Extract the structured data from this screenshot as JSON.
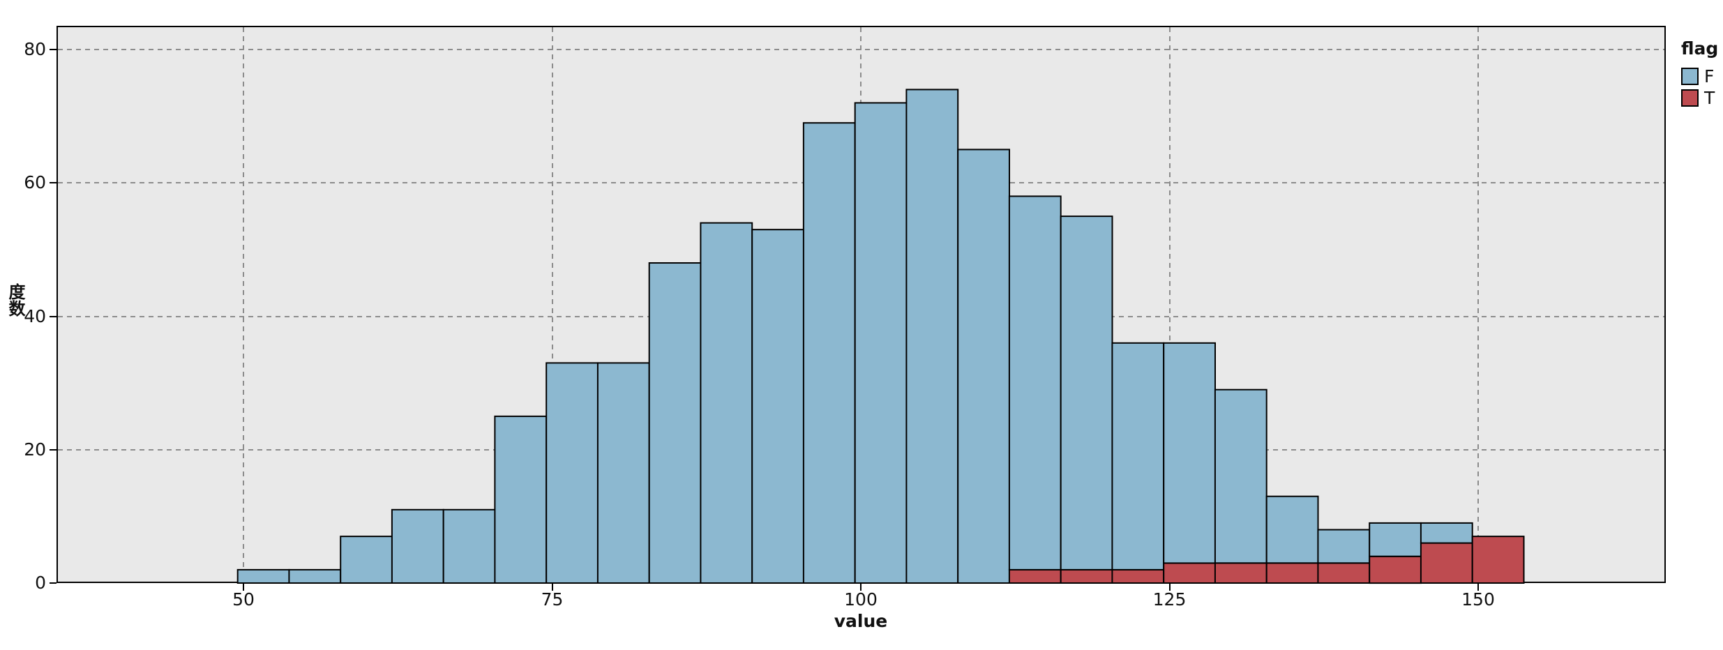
{
  "chart_data": {
    "type": "bar",
    "subtype": "stacked-histogram",
    "title": "",
    "xlabel": "value",
    "ylabel": "度数",
    "x_ticks": [
      50,
      75,
      100,
      125,
      150
    ],
    "y_ticks": [
      0,
      20,
      40,
      60,
      80
    ],
    "xlim": [
      34.9,
      165.2
    ],
    "ylim": [
      0,
      83.5
    ],
    "grid": "dashed-both-axes",
    "bin_start": 49.53,
    "bin_width": 4.1667,
    "bin_count": 25,
    "legend": {
      "title": "flag",
      "position": "top-right-outside",
      "entries": [
        {
          "label": "F",
          "color": "#8cb8d0"
        },
        {
          "label": "T",
          "color": "#be4b50"
        }
      ]
    },
    "stacking": "T on bottom, F on top",
    "series": [
      {
        "name": "F",
        "color": "#8cb8d0",
        "values": [
          2,
          2,
          7,
          11,
          11,
          25,
          33,
          33,
          48,
          54,
          53,
          69,
          72,
          74,
          65,
          56,
          53,
          34,
          33,
          26,
          10,
          5,
          5,
          3,
          0
        ]
      },
      {
        "name": "T",
        "color": "#be4b50",
        "values": [
          0,
          0,
          0,
          0,
          0,
          0,
          0,
          0,
          0,
          0,
          0,
          0,
          0,
          0,
          0,
          2,
          2,
          2,
          3,
          3,
          3,
          3,
          4,
          6,
          7
        ]
      }
    ],
    "stack_totals": [
      2,
      2,
      7,
      11,
      11,
      25,
      33,
      33,
      48,
      54,
      53,
      69,
      72,
      74,
      65,
      58,
      55,
      36,
      36,
      29,
      13,
      8,
      9,
      9,
      7
    ]
  },
  "colors": {
    "plot_background": "#e9e9e9",
    "page_background": "#ffffff",
    "gridline": "#8c8c8c",
    "axis_and_borders": "#000000",
    "bar_outline": "#000000",
    "series_F": "#8cb8d0",
    "series_T": "#be4b50"
  }
}
